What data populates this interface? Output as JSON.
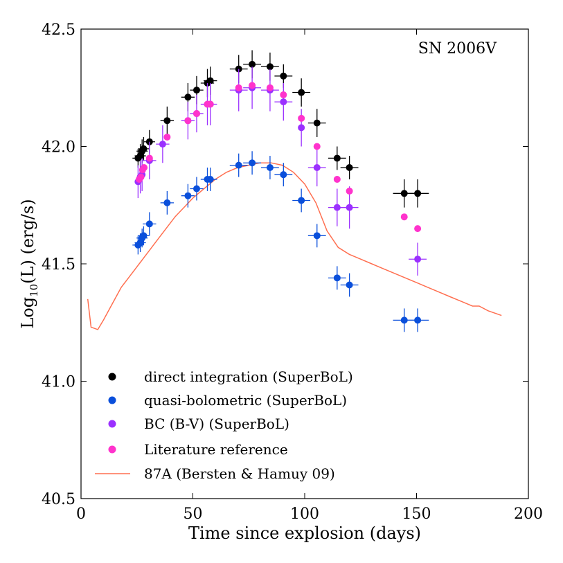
{
  "chart_data": {
    "type": "scatter",
    "title": "",
    "annotation": "SN 2006V",
    "xlabel": "Time since explosion (days)",
    "ylabel_prefix": "Log",
    "ylabel_sub": "10",
    "ylabel_suffix": "(L) (erg/s)",
    "xlim": [
      0,
      200
    ],
    "ylim": [
      40.5,
      42.5
    ],
    "xticks": [
      0,
      50,
      100,
      150,
      200
    ],
    "xtick_labels": [
      "0",
      "50",
      "100",
      "150",
      "200"
    ],
    "yticks": [
      40.5,
      41.0,
      41.5,
      42.0,
      42.5
    ],
    "ytick_labels": [
      "40.5",
      "41.0",
      "41.5",
      "42.0",
      "42.5"
    ],
    "grid": false,
    "legend_position": "lower-left",
    "series": [
      {
        "name": "direct integration (SuperBoL)",
        "color": "#000000",
        "marker": "circle",
        "points": [
          {
            "x": 25.5,
            "y": 41.95,
            "xerr": 2.5,
            "yerr": 0.04
          },
          {
            "x": 26.5,
            "y": 41.96,
            "xerr": 2.5,
            "yerr": 0.05
          },
          {
            "x": 27.3,
            "y": 41.98,
            "xerr": 2.5,
            "yerr": 0.05
          },
          {
            "x": 28.0,
            "y": 41.99,
            "xerr": 2.5,
            "yerr": 0.05
          },
          {
            "x": 30.6,
            "y": 42.02,
            "xerr": 2.5,
            "yerr": 0.05
          },
          {
            "x": 38.5,
            "y": 42.11,
            "xerr": 3,
            "yerr": 0.06
          },
          {
            "x": 47.8,
            "y": 42.21,
            "xerr": 3,
            "yerr": 0.06
          },
          {
            "x": 51.7,
            "y": 42.24,
            "xerr": 3,
            "yerr": 0.06
          },
          {
            "x": 56.5,
            "y": 42.27,
            "xerr": 3,
            "yerr": 0.06
          },
          {
            "x": 57.8,
            "y": 42.28,
            "xerr": 3,
            "yerr": 0.06
          },
          {
            "x": 70.5,
            "y": 42.33,
            "xerr": 4,
            "yerr": 0.06
          },
          {
            "x": 76.5,
            "y": 42.35,
            "xerr": 4,
            "yerr": 0.06
          },
          {
            "x": 84.5,
            "y": 42.34,
            "xerr": 4,
            "yerr": 0.06
          },
          {
            "x": 90.5,
            "y": 42.3,
            "xerr": 4,
            "yerr": 0.05
          },
          {
            "x": 98.5,
            "y": 42.23,
            "xerr": 4,
            "yerr": 0.06
          },
          {
            "x": 105.5,
            "y": 42.1,
            "xerr": 4,
            "yerr": 0.06
          },
          {
            "x": 114.5,
            "y": 41.95,
            "xerr": 4,
            "yerr": 0.05
          },
          {
            "x": 120.0,
            "y": 41.91,
            "xerr": 4,
            "yerr": 0.05
          },
          {
            "x": 144.5,
            "y": 41.8,
            "xerr": 5,
            "yerr": 0.06
          },
          {
            "x": 150.5,
            "y": 41.8,
            "xerr": 5,
            "yerr": 0.06
          }
        ]
      },
      {
        "name": "quasi-bolometric (SuperBoL)",
        "color": "#0a4fdb",
        "marker": "circle",
        "points": [
          {
            "x": 25.5,
            "y": 41.58,
            "xerr": 2.5,
            "yerr": 0.04
          },
          {
            "x": 26.5,
            "y": 41.59,
            "xerr": 2.5,
            "yerr": 0.04
          },
          {
            "x": 27.3,
            "y": 41.61,
            "xerr": 2.5,
            "yerr": 0.04
          },
          {
            "x": 28.0,
            "y": 41.62,
            "xerr": 2.5,
            "yerr": 0.04
          },
          {
            "x": 30.6,
            "y": 41.67,
            "xerr": 3,
            "yerr": 0.05
          },
          {
            "x": 38.5,
            "y": 41.76,
            "xerr": 3,
            "yerr": 0.05
          },
          {
            "x": 47.8,
            "y": 41.79,
            "xerr": 3,
            "yerr": 0.05
          },
          {
            "x": 51.7,
            "y": 41.82,
            "xerr": 3,
            "yerr": 0.05
          },
          {
            "x": 56.5,
            "y": 41.86,
            "xerr": 3,
            "yerr": 0.05
          },
          {
            "x": 57.8,
            "y": 41.86,
            "xerr": 3,
            "yerr": 0.05
          },
          {
            "x": 70.5,
            "y": 41.92,
            "xerr": 4,
            "yerr": 0.05
          },
          {
            "x": 76.5,
            "y": 41.93,
            "xerr": 4,
            "yerr": 0.05
          },
          {
            "x": 84.5,
            "y": 41.91,
            "xerr": 4,
            "yerr": 0.05
          },
          {
            "x": 90.5,
            "y": 41.88,
            "xerr": 4,
            "yerr": 0.05
          },
          {
            "x": 98.5,
            "y": 41.77,
            "xerr": 4,
            "yerr": 0.05
          },
          {
            "x": 105.5,
            "y": 41.62,
            "xerr": 4,
            "yerr": 0.05
          },
          {
            "x": 114.5,
            "y": 41.44,
            "xerr": 4,
            "yerr": 0.05
          },
          {
            "x": 120.0,
            "y": 41.41,
            "xerr": 4,
            "yerr": 0.05
          },
          {
            "x": 144.5,
            "y": 41.26,
            "xerr": 5,
            "yerr": 0.05
          },
          {
            "x": 150.5,
            "y": 41.26,
            "xerr": 5,
            "yerr": 0.05
          }
        ]
      },
      {
        "name": "BC (B-V) (SuperBoL)",
        "color": "#9b30ff",
        "marker": "circle",
        "points": [
          {
            "x": 25.5,
            "y": 41.85,
            "xerr": 0,
            "yerr": 0.07
          },
          {
            "x": 26.5,
            "y": 41.87,
            "xerr": 0,
            "yerr": 0.07
          },
          {
            "x": 27.3,
            "y": 41.88,
            "xerr": 0,
            "yerr": 0.07
          },
          {
            "x": 30.6,
            "y": 41.94,
            "xerr": 3,
            "yerr": 0.08
          },
          {
            "x": 36.5,
            "y": 42.01,
            "xerr": 3,
            "yerr": 0.08
          },
          {
            "x": 47.8,
            "y": 42.11,
            "xerr": 3,
            "yerr": 0.08
          },
          {
            "x": 51.7,
            "y": 42.14,
            "xerr": 3,
            "yerr": 0.08
          },
          {
            "x": 56.5,
            "y": 42.18,
            "xerr": 3,
            "yerr": 0.09
          },
          {
            "x": 57.8,
            "y": 42.18,
            "xerr": 3,
            "yerr": 0.09
          },
          {
            "x": 70.5,
            "y": 42.24,
            "xerr": 4,
            "yerr": 0.09
          },
          {
            "x": 76.5,
            "y": 42.25,
            "xerr": 4,
            "yerr": 0.09
          },
          {
            "x": 84.5,
            "y": 42.24,
            "xerr": 4,
            "yerr": 0.09
          },
          {
            "x": 90.5,
            "y": 42.19,
            "xerr": 4,
            "yerr": 0.08
          },
          {
            "x": 98.5,
            "y": 42.08,
            "xerr": 0,
            "yerr": 0.08
          },
          {
            "x": 105.5,
            "y": 41.91,
            "xerr": 4,
            "yerr": 0.08
          },
          {
            "x": 114.5,
            "y": 41.74,
            "xerr": 4,
            "yerr": 0.08
          },
          {
            "x": 120.0,
            "y": 41.74,
            "xerr": 4,
            "yerr": 0.09
          },
          {
            "x": 150.5,
            "y": 41.52,
            "xerr": 4,
            "yerr": 0.07
          }
        ]
      },
      {
        "name": "Literature reference",
        "color": "#ff33cc",
        "marker": "circle",
        "points": [
          {
            "x": 26.0,
            "y": 41.86
          },
          {
            "x": 26.8,
            "y": 41.87
          },
          {
            "x": 27.5,
            "y": 41.9
          },
          {
            "x": 28.2,
            "y": 41.91
          },
          {
            "x": 30.6,
            "y": 41.95
          },
          {
            "x": 38.5,
            "y": 42.04
          },
          {
            "x": 47.8,
            "y": 42.11
          },
          {
            "x": 51.7,
            "y": 42.14
          },
          {
            "x": 56.5,
            "y": 42.18
          },
          {
            "x": 57.8,
            "y": 42.18
          },
          {
            "x": 70.5,
            "y": 42.25
          },
          {
            "x": 76.5,
            "y": 42.26
          },
          {
            "x": 84.5,
            "y": 42.25
          },
          {
            "x": 90.5,
            "y": 42.22
          },
          {
            "x": 98.5,
            "y": 42.12
          },
          {
            "x": 105.5,
            "y": 42.0
          },
          {
            "x": 114.5,
            "y": 41.86
          },
          {
            "x": 120.0,
            "y": 41.81
          },
          {
            "x": 144.5,
            "y": 41.7
          },
          {
            "x": 150.5,
            "y": 41.65
          }
        ]
      }
    ],
    "line_series": {
      "name": "87A (Bersten & Hamuy 09)",
      "color": "#ff6f50",
      "x": [
        3,
        4.5,
        7.5,
        10,
        14,
        18,
        22,
        26,
        30,
        34,
        38,
        42,
        46,
        50,
        55,
        60,
        65,
        70,
        75,
        80,
        85,
        90,
        95,
        100,
        105,
        110,
        115,
        120,
        125,
        130,
        135,
        140,
        145,
        150,
        155,
        160,
        165,
        170,
        175,
        178,
        182,
        185,
        188
      ],
      "y": [
        41.35,
        41.23,
        41.22,
        41.26,
        41.33,
        41.4,
        41.45,
        41.5,
        41.55,
        41.6,
        41.65,
        41.7,
        41.74,
        41.78,
        41.82,
        41.86,
        41.89,
        41.91,
        41.92,
        41.93,
        41.93,
        41.92,
        41.89,
        41.84,
        41.76,
        41.64,
        41.57,
        41.54,
        41.52,
        41.5,
        41.48,
        41.46,
        41.44,
        41.42,
        41.4,
        41.38,
        41.36,
        41.34,
        41.32,
        41.32,
        41.3,
        41.29,
        41.28
      ]
    }
  }
}
